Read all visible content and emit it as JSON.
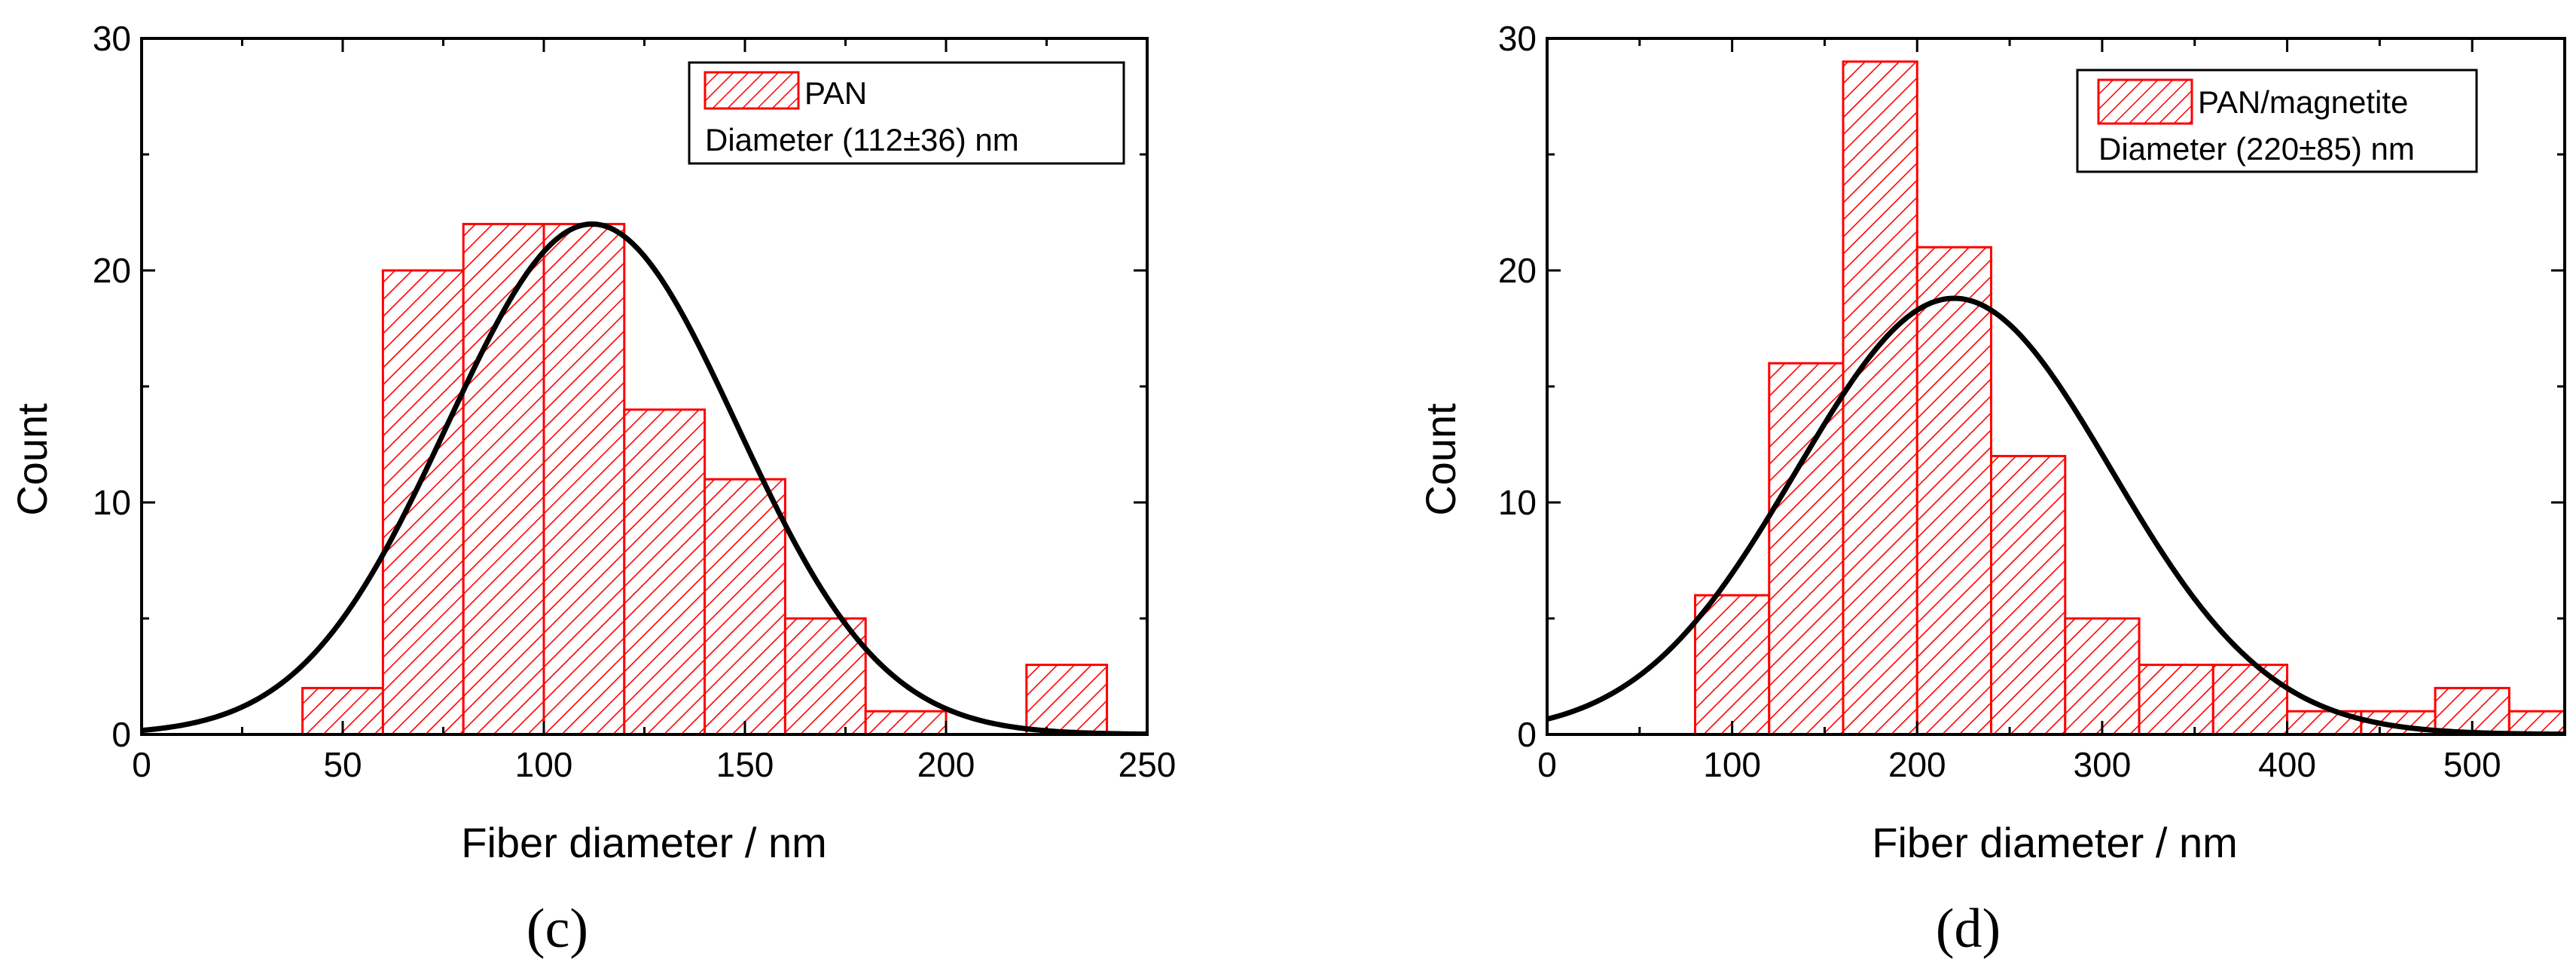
{
  "chart_data": [
    {
      "type": "bar",
      "panel_label": "(c)",
      "xlabel": "Fiber diameter / nm",
      "ylabel": "Count",
      "xlim": [
        0,
        250
      ],
      "ylim": [
        0,
        30
      ],
      "xticks": [
        "0",
        "50",
        "100",
        "150",
        "200",
        "250"
      ],
      "yticks": [
        "0",
        "10",
        "20",
        "30"
      ],
      "grid": false,
      "legend": {
        "position": "top-right",
        "series_name": "PAN",
        "note": "Diameter (112±36) nm"
      },
      "bins": [
        {
          "x0": 40,
          "x1": 60,
          "count": 2
        },
        {
          "x0": 60,
          "x1": 80,
          "count": 20
        },
        {
          "x0": 80,
          "x1": 100,
          "count": 22
        },
        {
          "x0": 100,
          "x1": 120,
          "count": 22
        },
        {
          "x0": 120,
          "x1": 140,
          "count": 14
        },
        {
          "x0": 140,
          "x1": 160,
          "count": 11
        },
        {
          "x0": 160,
          "x1": 180,
          "count": 5
        },
        {
          "x0": 180,
          "x1": 200,
          "count": 1
        },
        {
          "x0": 220,
          "x1": 240,
          "count": 3
        }
      ],
      "fit": {
        "type": "gaussian",
        "mean": 112,
        "sd": 36,
        "peak": 22
      }
    },
    {
      "type": "bar",
      "panel_label": "(d)",
      "xlabel": "Fiber diameter / nm",
      "ylabel": "Count",
      "xlim": [
        0,
        550
      ],
      "ylim": [
        0,
        30
      ],
      "xticks": [
        "0",
        "100",
        "200",
        "300",
        "400",
        "500"
      ],
      "yticks": [
        "0",
        "10",
        "20",
        "30"
      ],
      "grid": false,
      "legend": {
        "position": "top-right",
        "series_name": "PAN/magnetite",
        "note": "Diameter (220±85) nm"
      },
      "bins": [
        {
          "x0": 80,
          "x1": 120,
          "count": 6
        },
        {
          "x0": 120,
          "x1": 160,
          "count": 16
        },
        {
          "x0": 160,
          "x1": 200,
          "count": 29
        },
        {
          "x0": 200,
          "x1": 240,
          "count": 21
        },
        {
          "x0": 240,
          "x1": 280,
          "count": 12
        },
        {
          "x0": 280,
          "x1": 320,
          "count": 5
        },
        {
          "x0": 320,
          "x1": 360,
          "count": 3
        },
        {
          "x0": 360,
          "x1": 400,
          "count": 3
        },
        {
          "x0": 400,
          "x1": 440,
          "count": 1
        },
        {
          "x0": 440,
          "x1": 480,
          "count": 1
        },
        {
          "x0": 480,
          "x1": 520,
          "count": 2
        },
        {
          "x0": 520,
          "x1": 560,
          "count": 1
        }
      ],
      "fit": {
        "type": "gaussian",
        "mean": 220,
        "sd": 85,
        "peak": 18.8
      }
    }
  ],
  "colors": {
    "bar": "#ff0000",
    "fit": "#000000",
    "axis": "#000000"
  }
}
